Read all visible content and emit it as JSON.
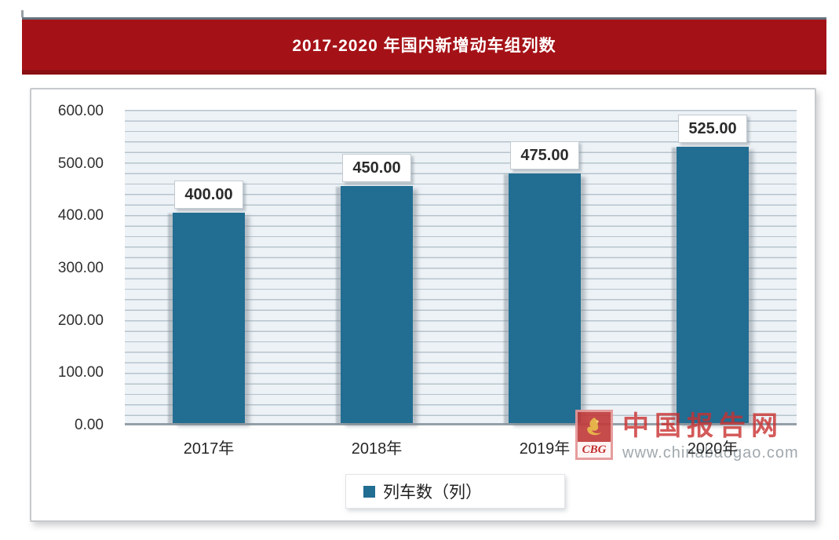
{
  "banner": {
    "title": "2017-2020 年国内新增动车组列数"
  },
  "chart_data": {
    "type": "bar",
    "title": "2017-2020 年国内新增动车组列数",
    "categories": [
      "2017年",
      "2018年",
      "2019年",
      "2020年"
    ],
    "values": [
      400,
      450,
      475,
      525
    ],
    "value_labels": [
      "400.00",
      "450.00",
      "475.00",
      "525.00"
    ],
    "ylabel": "",
    "xlabel": "",
    "ylim": [
      0,
      600
    ],
    "y_tick_labels": [
      "600.00",
      "500.00",
      "400.00",
      "300.00",
      "200.00",
      "100.00",
      "0.00"
    ],
    "grid": "horizontal minor gridlines every 20 units, on",
    "legend": {
      "label": "列车数（列）",
      "position": "bottom-center"
    }
  },
  "watermark": {
    "brand": "中国报告网",
    "url": "www.chinabaogao.com",
    "logo_text": "CBG"
  },
  "colors": {
    "banner_bg": "#a41217",
    "banner_topline": "#64727e",
    "banner_bottomline": "#8a0f13",
    "bar_color": "#226d92",
    "plot_bg": "#edf2f6",
    "gridline": "#b6c4cd",
    "axis_line": "#95a0a8",
    "watermark_red": "#c93030"
  }
}
